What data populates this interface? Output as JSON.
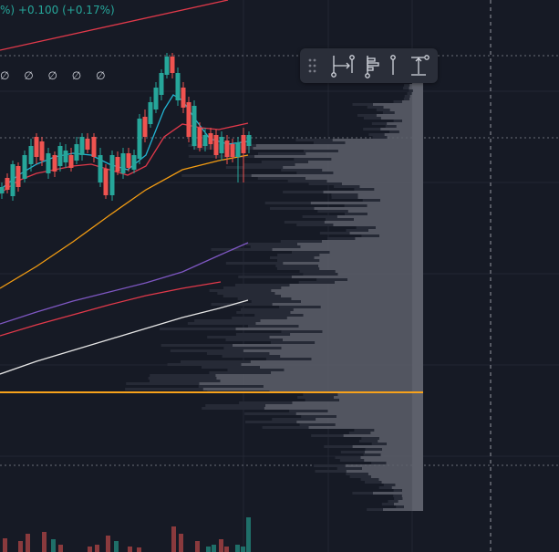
{
  "legend": {
    "change_text": "%) +0.100 (+0.17%)",
    "indicator_values": "∅ ∅ ∅ ∅ ∅"
  },
  "toolbar": {
    "items": [
      {
        "icon": "drag-handle-icon"
      },
      {
        "icon": "date-range-icon"
      },
      {
        "icon": "volume-profile-icon"
      },
      {
        "icon": "anchored-vwap-icon"
      },
      {
        "icon": "price-range-icon"
      }
    ]
  },
  "colors": {
    "background": "#161a25",
    "up": "#26a69a",
    "down": "#ef5350",
    "profile": "#5d606b",
    "poc": "#f7a21b",
    "ma_fast": "#22b5d4",
    "ma_orange": "#f39c12",
    "ma_purple": "#7e57c2",
    "ma_red": "#e0394a",
    "ma_white": "#e6e6e6"
  }
}
